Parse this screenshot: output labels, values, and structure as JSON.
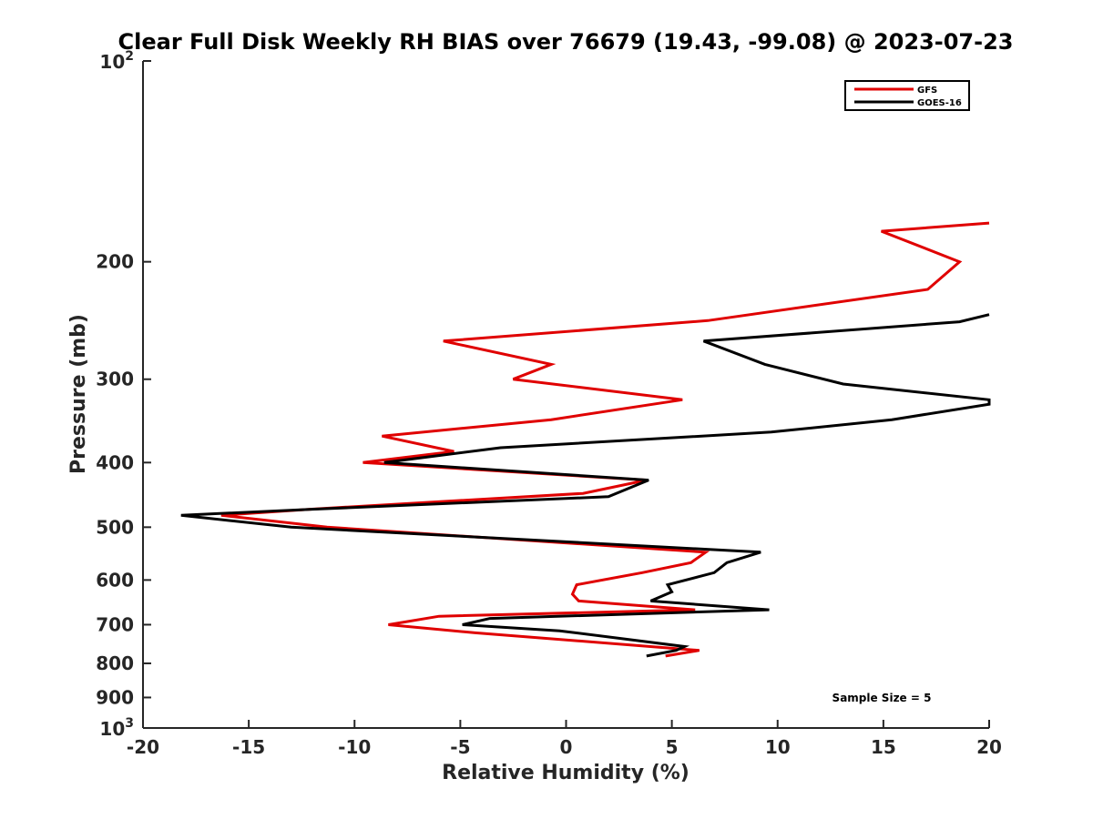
{
  "chart_data": {
    "type": "line",
    "title": "Clear Full Disk Weekly RH BIAS over 76679 (19.43, -99.08) @ 2023-07-23",
    "xlabel": "Relative Humidity (%)",
    "ylabel": "Pressure (mb)",
    "xlim": [
      -20,
      20
    ],
    "ylim": [
      100,
      1000
    ],
    "y_scale": "log",
    "y_reversed": true,
    "grid": false,
    "legend_position": "top-right",
    "x_ticks": [
      -20,
      -15,
      -10,
      -5,
      0,
      5,
      10,
      15,
      20
    ],
    "x_tick_labels": [
      "-20",
      "-15",
      "-10",
      "-5",
      "0",
      "5",
      "10",
      "15",
      "20"
    ],
    "y_ticks": [
      200,
      300,
      400,
      500,
      600,
      700,
      800,
      900
    ],
    "y_tick_labels": [
      "200",
      "300",
      "400",
      "500",
      "600",
      "700",
      "800",
      "900"
    ],
    "y_end_labels": [
      {
        "base": "10",
        "exp": "2",
        "value": 100
      },
      {
        "base": "10",
        "exp": "3",
        "value": 1000
      }
    ],
    "series": [
      {
        "name": "GFS",
        "color": "#e00000",
        "points": [
          [
            20,
            175
          ],
          [
            14.9,
            180
          ],
          [
            18.6,
            200
          ],
          [
            17.1,
            220
          ],
          [
            6.7,
            245
          ],
          [
            -5.8,
            263
          ],
          [
            -0.7,
            285
          ],
          [
            -2.5,
            300
          ],
          [
            5.5,
            322
          ],
          [
            -0.7,
            345
          ],
          [
            -8.7,
            365
          ],
          [
            -5.3,
            385
          ],
          [
            -9.6,
            400
          ],
          [
            3.8,
            425
          ],
          [
            0.8,
            445
          ],
          [
            -12.1,
            470
          ],
          [
            -16.3,
            480
          ],
          [
            -11.3,
            500
          ],
          [
            6.6,
            545
          ],
          [
            5.9,
            565
          ],
          [
            3.6,
            585
          ],
          [
            0.5,
            610
          ],
          [
            0.3,
            630
          ],
          [
            0.6,
            645
          ],
          [
            6.1,
            665
          ],
          [
            -6.0,
            680
          ],
          [
            -8.4,
            700
          ],
          [
            -4.3,
            720
          ],
          [
            6.3,
            765
          ],
          [
            4.7,
            780
          ]
        ]
      },
      {
        "name": "GOES-16",
        "color": "#000000",
        "points": [
          [
            20,
            240
          ],
          [
            18.6,
            246
          ],
          [
            6.5,
            263
          ],
          [
            9.4,
            285
          ],
          [
            13.1,
            305
          ],
          [
            20,
            322
          ],
          [
            20,
            327
          ],
          [
            15.4,
            345
          ],
          [
            9.7,
            360
          ],
          [
            -3.1,
            380
          ],
          [
            -8.6,
            400
          ],
          [
            3.9,
            425
          ],
          [
            2.0,
            450
          ],
          [
            -12.0,
            470
          ],
          [
            -18.2,
            480
          ],
          [
            -13.0,
            500
          ],
          [
            9.2,
            545
          ],
          [
            7.6,
            565
          ],
          [
            7.0,
            585
          ],
          [
            4.8,
            610
          ],
          [
            5.0,
            625
          ],
          [
            4.0,
            645
          ],
          [
            9.6,
            665
          ],
          [
            -3.6,
            685
          ],
          [
            -4.9,
            700
          ],
          [
            -0.3,
            715
          ],
          [
            5.6,
            755
          ],
          [
            5.2,
            765
          ],
          [
            3.8,
            780
          ]
        ]
      }
    ],
    "annotations": [
      "Sample Size = 5"
    ]
  }
}
